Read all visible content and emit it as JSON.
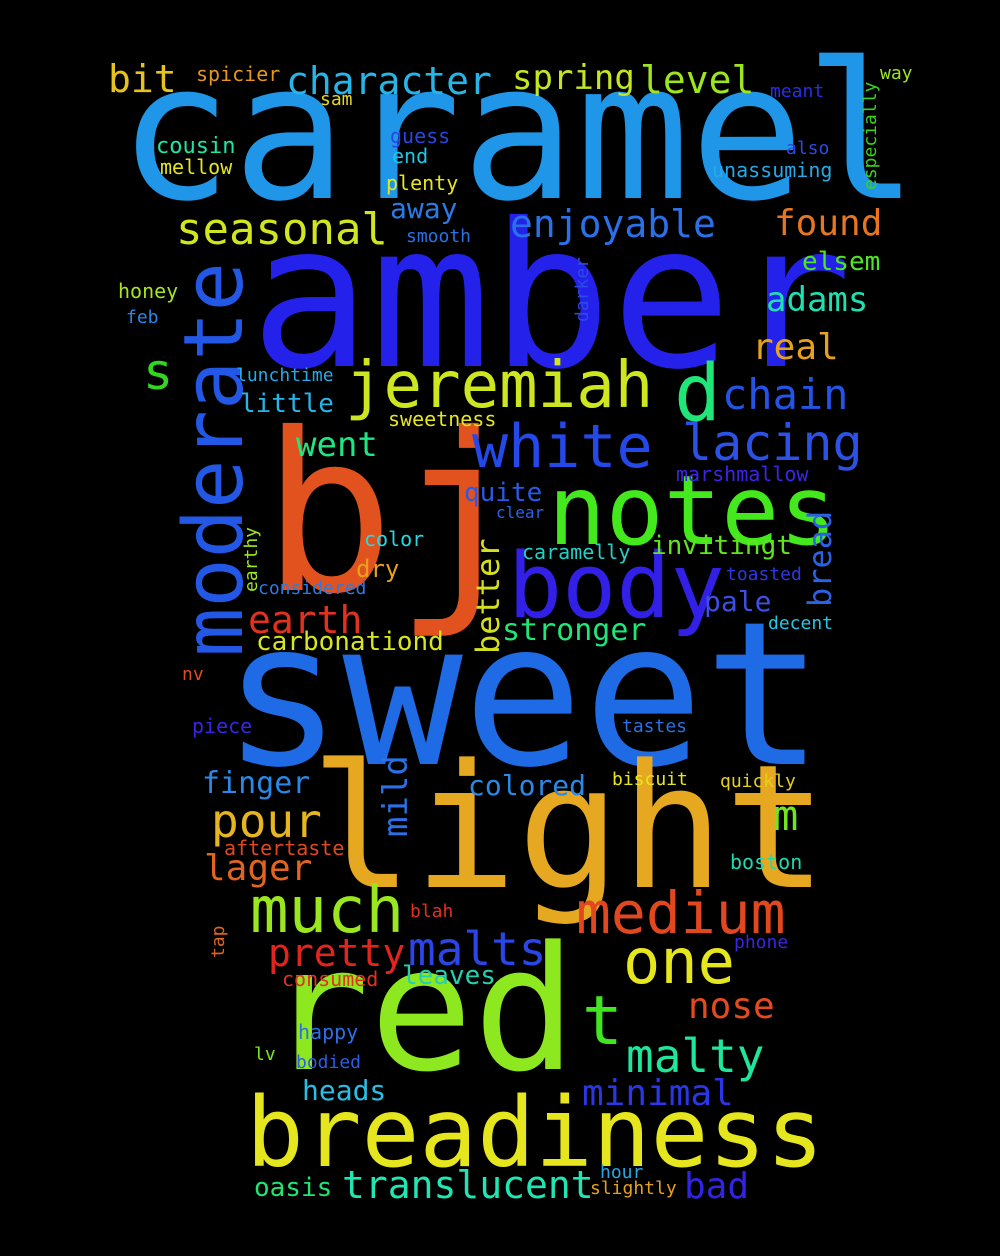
{
  "words": [
    {
      "text": "caramel",
      "color": "#1f96e8"
    },
    {
      "text": "amber",
      "color": "#2421ea"
    },
    {
      "text": "sweet",
      "color": "#1f6be6"
    },
    {
      "text": "bj",
      "color": "#e2521f"
    },
    {
      "text": "light",
      "color": "#e6a820"
    },
    {
      "text": "red",
      "color": "#8ee81f"
    },
    {
      "text": "breadiness",
      "color": "#e6e61f"
    },
    {
      "text": "notes",
      "color": "#43e81d"
    },
    {
      "text": "body",
      "color": "#3320e6"
    },
    {
      "text": "moderate",
      "color": "#2357e6"
    },
    {
      "text": "jeremiah",
      "color": "#cde61f"
    },
    {
      "text": "d",
      "color": "#20e67a"
    },
    {
      "text": "white",
      "color": "#2449e8"
    },
    {
      "text": "lacing",
      "color": "#2b51e6"
    },
    {
      "text": "medium",
      "color": "#e2481f"
    },
    {
      "text": "much",
      "color": "#9ae61f"
    },
    {
      "text": "one",
      "color": "#e6e61f"
    },
    {
      "text": "malty",
      "color": "#1fe69b"
    },
    {
      "text": "t",
      "color": "#41e61f"
    },
    {
      "text": "malts",
      "color": "#2b45e6"
    },
    {
      "text": "seasonal",
      "color": "#d0e61f"
    },
    {
      "text": "character",
      "color": "#26b5e6"
    },
    {
      "text": "spring",
      "color": "#c4e61f"
    },
    {
      "text": "level",
      "color": "#9de61f"
    },
    {
      "text": "bit",
      "color": "#e6c21f"
    },
    {
      "text": "enjoyable",
      "color": "#2a70e6"
    },
    {
      "text": "found",
      "color": "#e8751f"
    },
    {
      "text": "adams",
      "color": "#1fe0b1"
    },
    {
      "text": "real",
      "color": "#e6a21f"
    },
    {
      "text": "chain",
      "color": "#2454e6"
    },
    {
      "text": "s",
      "color": "#31d61f"
    },
    {
      "text": "pour",
      "color": "#e6b51f"
    },
    {
      "text": "m",
      "color": "#71e61f"
    },
    {
      "text": "lager",
      "color": "#e2651f"
    },
    {
      "text": "pretty",
      "color": "#e2241f"
    },
    {
      "text": "minimal",
      "color": "#2b36e6"
    },
    {
      "text": "nose",
      "color": "#e24a1f"
    },
    {
      "text": "translucent",
      "color": "#1fe6b3"
    },
    {
      "text": "bad",
      "color": "#3224e6"
    },
    {
      "text": "earth",
      "color": "#e2311f"
    },
    {
      "text": "went",
      "color": "#1fe682"
    },
    {
      "text": "stronger",
      "color": "#1fe67b"
    },
    {
      "text": "better",
      "color": "#d4e01f"
    },
    {
      "text": "mild",
      "color": "#2b70e6"
    },
    {
      "text": "bread",
      "color": "#2b61e6"
    },
    {
      "text": "carbonationd",
      "color": "#d7e61f"
    },
    {
      "text": "finger",
      "color": "#2b88e6"
    },
    {
      "text": "colored",
      "color": "#2b89e6"
    },
    {
      "text": "invitingt",
      "color": "#60e61f"
    },
    {
      "text": "pale",
      "color": "#3d4fe6"
    },
    {
      "text": "heads",
      "color": "#26bfe6"
    },
    {
      "text": "leaves",
      "color": "#26cfb0"
    },
    {
      "text": "away",
      "color": "#2b7be6"
    },
    {
      "text": "little",
      "color": "#26b5e6"
    },
    {
      "text": "quite",
      "color": "#2b59e6"
    },
    {
      "text": "elsem",
      "color": "#4de61f"
    },
    {
      "text": "oasis",
      "color": "#1fe673"
    },
    {
      "text": "dry",
      "color": "#e6a21f"
    },
    {
      "text": "cousin",
      "color": "#1fe6a0"
    },
    {
      "text": "mellow",
      "color": "#e6e61f"
    },
    {
      "text": "spicier",
      "color": "#e6961f"
    },
    {
      "text": "sam",
      "color": "#e6d91f"
    },
    {
      "text": "guess",
      "color": "#2b45e6"
    },
    {
      "text": "end",
      "color": "#1fc6e6"
    },
    {
      "text": "plenty",
      "color": "#e6e61f"
    },
    {
      "text": "smooth",
      "color": "#2b72e6"
    },
    {
      "text": "meant",
      "color": "#2b2ee6"
    },
    {
      "text": "also",
      "color": "#2b4ae6"
    },
    {
      "text": "unassuming",
      "color": "#26a9e6"
    },
    {
      "text": "way",
      "color": "#9de61f"
    },
    {
      "text": "especially",
      "color": "#3ad11f"
    },
    {
      "text": "honey",
      "color": "#a4e61f"
    },
    {
      "text": "feb",
      "color": "#2b86e6"
    },
    {
      "text": "darker",
      "color": "#2b4ae6"
    },
    {
      "text": "lunchtime",
      "color": "#26a9e6"
    },
    {
      "text": "sweetness",
      "color": "#e6e61f"
    },
    {
      "text": "marshmallow",
      "color": "#3d24e6"
    },
    {
      "text": "clear",
      "color": "#2b63e6"
    },
    {
      "text": "caramelly",
      "color": "#26cfc6"
    },
    {
      "text": "color",
      "color": "#26d9e6"
    },
    {
      "text": "considered",
      "color": "#2b7be6"
    },
    {
      "text": "earthy",
      "color": "#9ee61f"
    },
    {
      "text": "toasted",
      "color": "#2b3ae6"
    },
    {
      "text": "decent",
      "color": "#26c6e6"
    },
    {
      "text": "nv",
      "color": "#e24a1f"
    },
    {
      "text": "piece",
      "color": "#3a24e6"
    },
    {
      "text": "tastes",
      "color": "#2b70e6"
    },
    {
      "text": "biscuit",
      "color": "#e6e61f"
    },
    {
      "text": "quickly",
      "color": "#e6d01f"
    },
    {
      "text": "aftertaste",
      "color": "#e2481f"
    },
    {
      "text": "boston",
      "color": "#1fd9b0"
    },
    {
      "text": "blah",
      "color": "#e2311f"
    },
    {
      "text": "tap",
      "color": "#e2651f"
    },
    {
      "text": "phone",
      "color": "#3b24e6"
    },
    {
      "text": "consumed",
      "color": "#e2311f"
    },
    {
      "text": "happy",
      "color": "#2b70e6"
    },
    {
      "text": "lv",
      "color": "#7de61f"
    },
    {
      "text": "bodied",
      "color": "#2b5de6"
    },
    {
      "text": "hour",
      "color": "#26a9e6"
    },
    {
      "text": "slightly",
      "color": "#e6a21f"
    }
  ]
}
